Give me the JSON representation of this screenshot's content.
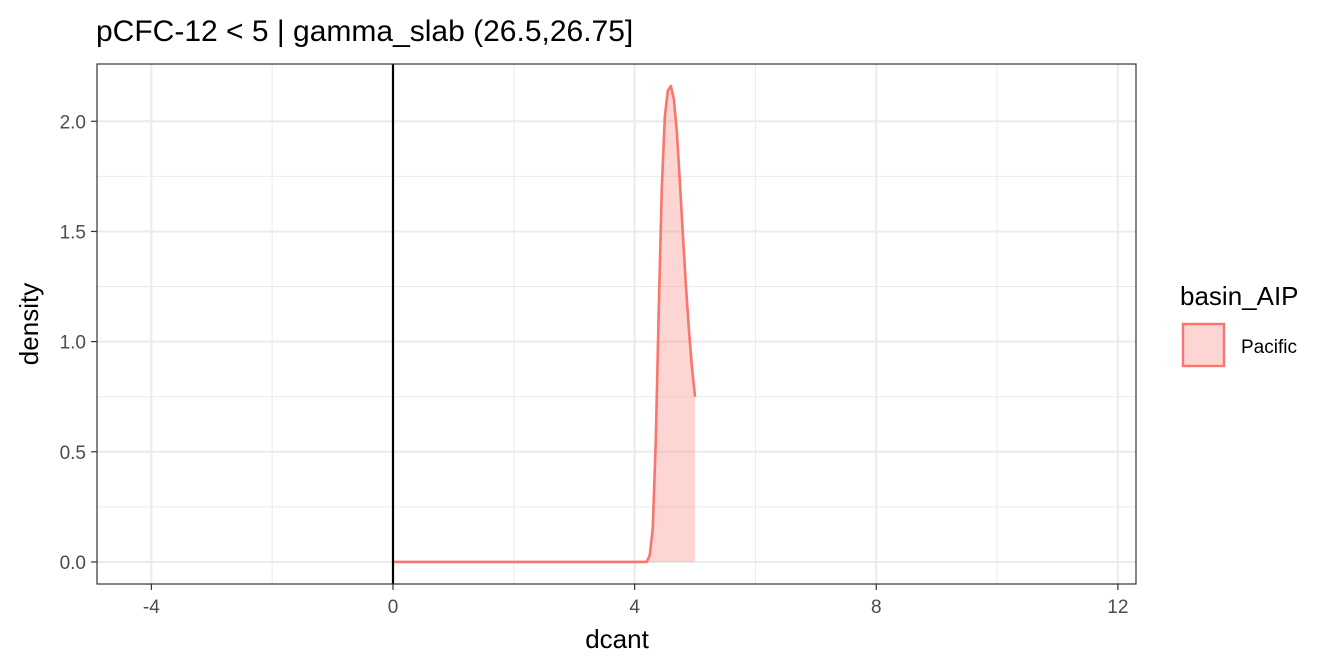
{
  "chart_data": {
    "type": "area",
    "title": "pCFC-12 < 5 | gamma_slab (26.5,26.75]",
    "xlabel": "dcant",
    "ylabel": "density",
    "xlim": [
      -4.9,
      12.3
    ],
    "ylim": [
      -0.1,
      2.26
    ],
    "x_ticks": [
      -4,
      0,
      4,
      8,
      12
    ],
    "x_tick_labels": [
      "-4",
      "0",
      "4",
      "8",
      "12"
    ],
    "y_ticks": [
      0.0,
      0.5,
      1.0,
      1.5,
      2.0
    ],
    "y_tick_labels": [
      "0.0",
      "0.5",
      "1.0",
      "1.5",
      "2.0"
    ],
    "grid": true,
    "vline_x": 0,
    "legend": {
      "title": "basin_AIP",
      "position": "right"
    },
    "series": [
      {
        "name": "Pacific",
        "line_color": "#F8766D",
        "fill_color": "#F8766D",
        "fill_opacity": 0.3,
        "x": [
          0,
          1,
          2,
          3,
          4.0,
          4.2,
          4.25,
          4.3,
          4.35,
          4.4,
          4.45,
          4.5,
          4.55,
          4.6,
          4.65,
          4.7,
          4.75,
          4.8,
          4.85,
          4.9,
          4.95,
          5.0
        ],
        "y": [
          0,
          0,
          0,
          0,
          0,
          0.0,
          0.03,
          0.15,
          0.55,
          1.15,
          1.7,
          2.02,
          2.14,
          2.16,
          2.1,
          1.95,
          1.72,
          1.48,
          1.25,
          1.05,
          0.88,
          0.75
        ]
      }
    ]
  }
}
